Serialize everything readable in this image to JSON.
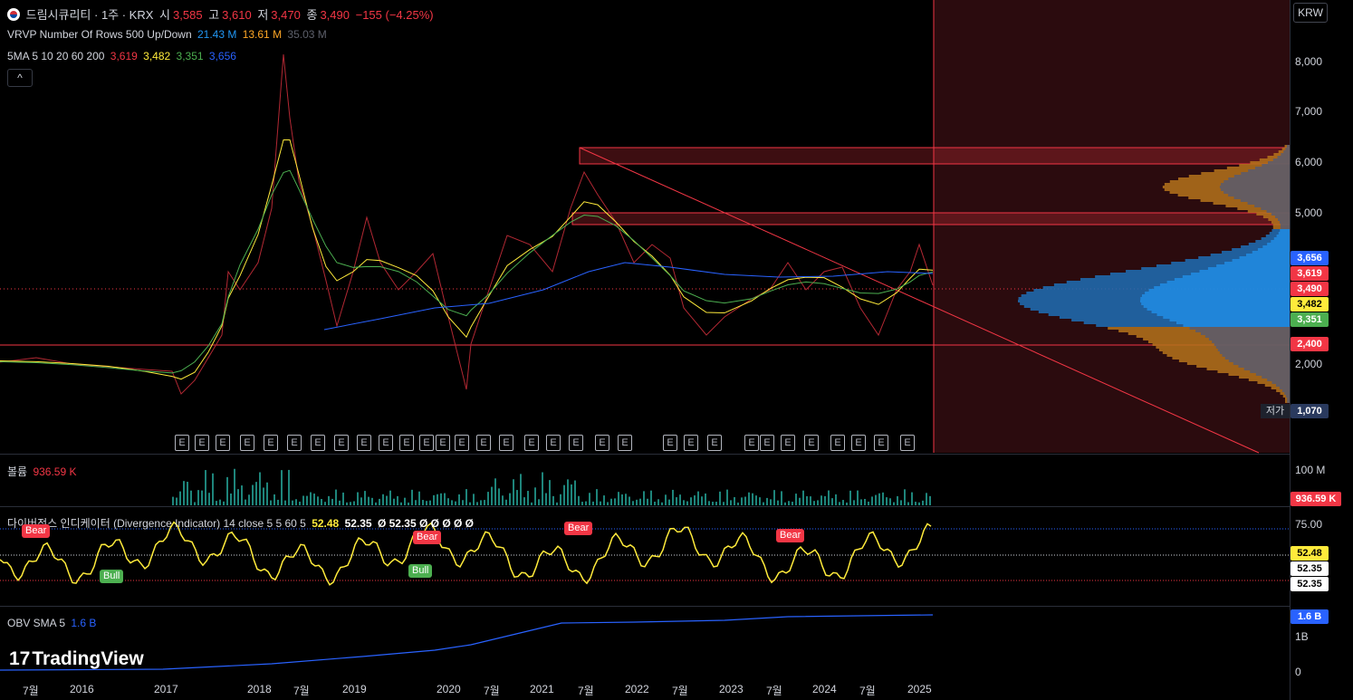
{
  "header": {
    "flag_icon": "korea-flag-icon",
    "symbol": "드림시큐리티 · 1주 · KRX",
    "open_label": "시",
    "open": "3,585",
    "high_label": "고",
    "high": "3,610",
    "low_label": "저",
    "low": "3,470",
    "close_label": "종",
    "close": "3,490",
    "change": "−155 (−4.25%)"
  },
  "vrvp": {
    "label": "VRVP Number Of Rows 500 Up/Down",
    "up": "21.43 M",
    "down": "13.61 M",
    "total": "35.03 M"
  },
  "sma": {
    "label": "5MA 5 10 20 60 200",
    "v1": "3,619",
    "v2": "3,482",
    "v3": "3,351",
    "v4": "3,656"
  },
  "collapse_icon": "chevron-up-icon",
  "currency": "KRW",
  "price_axis": [
    "8,000",
    "7,000",
    "6,000",
    "5,000",
    "2,000"
  ],
  "price_tags": [
    {
      "text": "3,656",
      "color": "#2962ff"
    },
    {
      "text": "3,619",
      "color": "#f23645"
    },
    {
      "text": "3,490",
      "color": "#f23645"
    },
    {
      "text": "3,482",
      "color": "#ffeb3b"
    },
    {
      "text": "3,351",
      "color": "#4caf50"
    },
    {
      "text": "2,400",
      "color": "#f23645"
    }
  ],
  "low_tag": {
    "label": "저가",
    "value": "1,070"
  },
  "earnings_marker": "E",
  "volume": {
    "label": "볼륨",
    "value": "936.59 K",
    "axis": "100 M",
    "tag": "936.59 K"
  },
  "divergence": {
    "label": "다이버전스 인디케이터 (Divergence Indicator) 14 close 5 5 60 5",
    "v1": "52.48",
    "v2": "52.35",
    "v3": "Ø 52.35 Ø Ø Ø Ø Ø",
    "axis": "75.00",
    "tag1": "52.48",
    "tag2": "52.35",
    "tag3": "52.35",
    "bear": "Bear",
    "bull": "Bull"
  },
  "obv": {
    "label": "OBV SMA 5",
    "value": "1.6 B",
    "tag": "1.6 B",
    "axis1": "1B",
    "axis0": "0"
  },
  "watermark": "TradingView",
  "x_axis": [
    "7월",
    "2016",
    "2017",
    "2018",
    "7월",
    "2019",
    "2020",
    "7월",
    "2021",
    "7월",
    "2022",
    "7월",
    "2023",
    "7월",
    "2024",
    "7월",
    "2025"
  ]
}
